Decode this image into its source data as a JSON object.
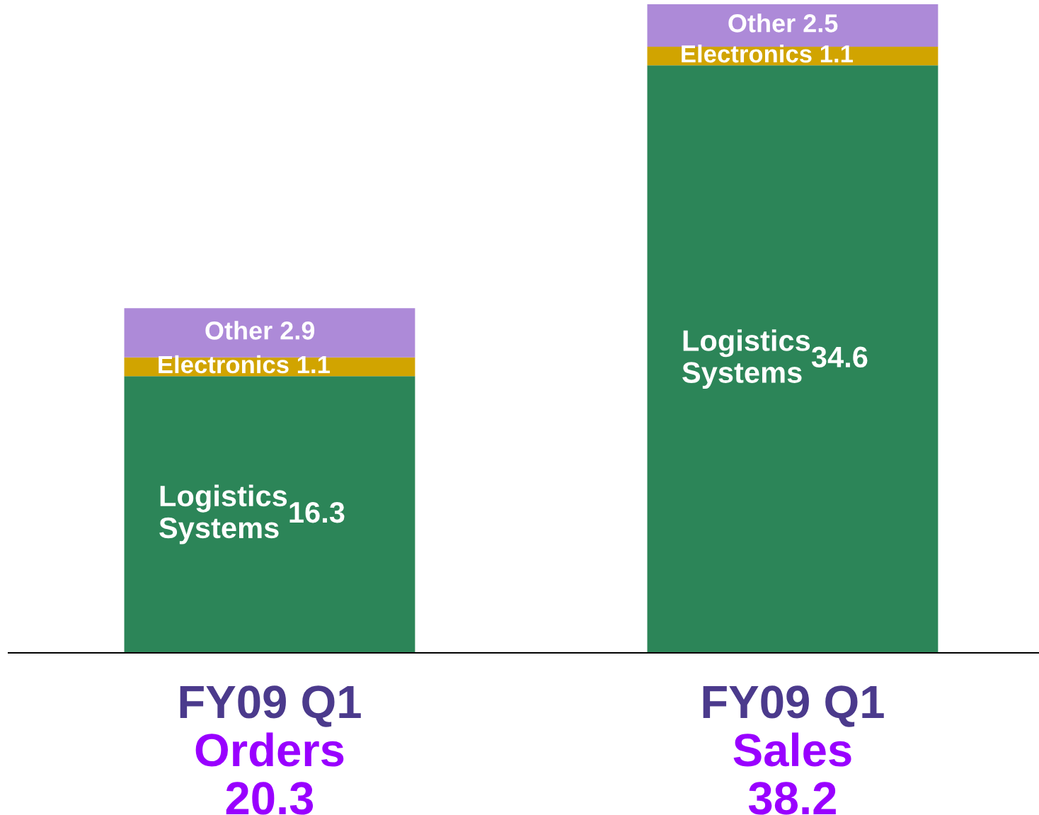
{
  "chart_data": {
    "type": "bar",
    "stacked": true,
    "data_labels": true,
    "legend": false,
    "tick_labels": "x",
    "categories": [
      "FY09 Q1\nOrders",
      "FY09 Q1\nSales"
    ],
    "series": [
      {
        "name": "Logistics Systems",
        "color": "#2c8558",
        "values": [
          16.3,
          34.6
        ]
      },
      {
        "name": "Electronics",
        "color": "#d1a400",
        "values": [
          1.1,
          1.1
        ]
      },
      {
        "name": "Other",
        "color": "#ad8ad8",
        "values": [
          2.9,
          2.5
        ]
      }
    ],
    "totals": [
      "20.3",
      "38.2"
    ]
  }
}
